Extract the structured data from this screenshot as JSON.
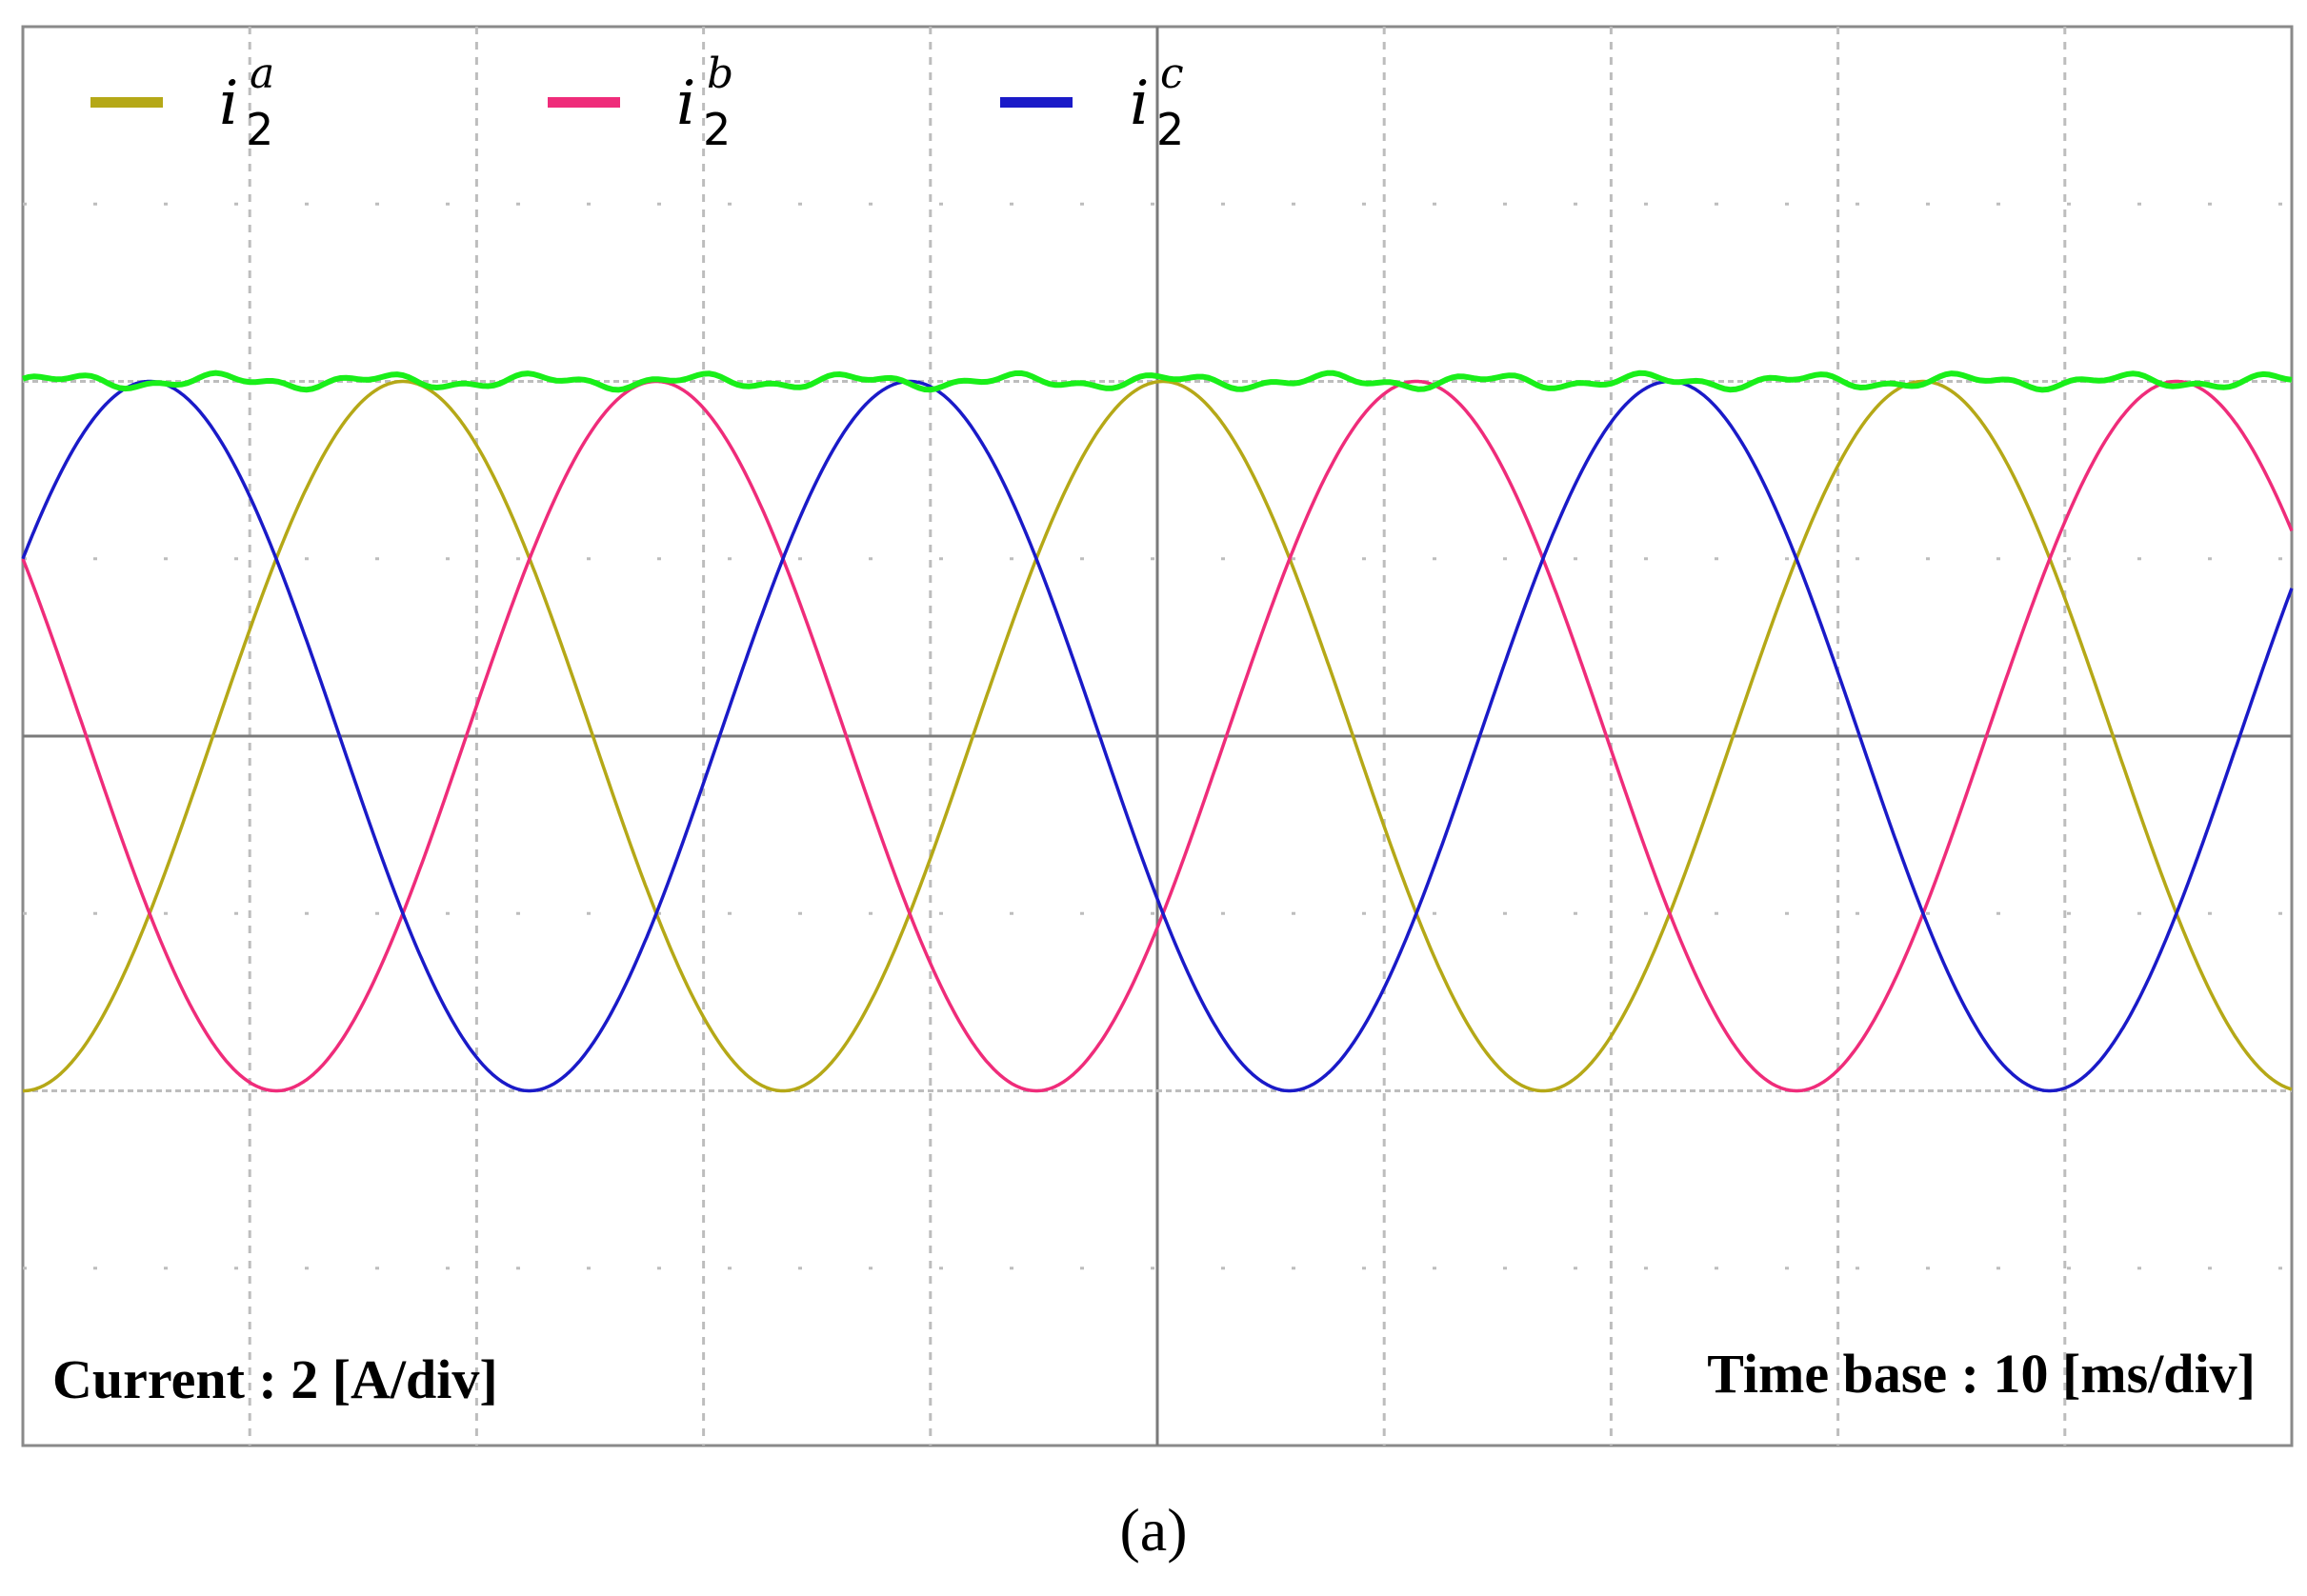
{
  "chart_data": {
    "type": "line",
    "title": "",
    "xlabel": "",
    "ylabel": "",
    "divisions": {
      "x": 10,
      "y": 8
    },
    "xlim_div": [
      0,
      10
    ],
    "ylim_div": [
      -4,
      4
    ],
    "scale_current_A_per_div": 2,
    "scale_time_ms_per_div": 10,
    "grid": "dotted",
    "legend_position": "top",
    "colors": {
      "i2a": "#b5a817",
      "i2b": "#ef2c7a",
      "i2c": "#1a1ac8",
      "envelope": "#19ef19",
      "grid": "#bdbdbd",
      "axis": "#7a7a7a"
    },
    "series": [
      {
        "name": "i2a",
        "amplitude_A": 4,
        "period_ms": 33.5,
        "phase_deg": -90
      },
      {
        "name": "i2b",
        "amplitude_A": 4,
        "period_ms": 33.5,
        "phase_deg": 150
      },
      {
        "name": "i2c",
        "amplitude_A": 4,
        "period_ms": 33.5,
        "phase_deg": 30
      }
    ],
    "envelope": {
      "level_A": 4.0,
      "ripple_A": 0.06
    },
    "legend": [
      {
        "base": "i",
        "sub": "2",
        "sup": "a"
      },
      {
        "base": "i",
        "sub": "2",
        "sup": "b"
      },
      {
        "base": "i",
        "sub": "2",
        "sup": "c"
      }
    ],
    "annotations": {
      "current": "Current : 2 [A/div]",
      "timebase": "Time base : 10 [ms/div]"
    }
  },
  "panel_label": "(a)"
}
